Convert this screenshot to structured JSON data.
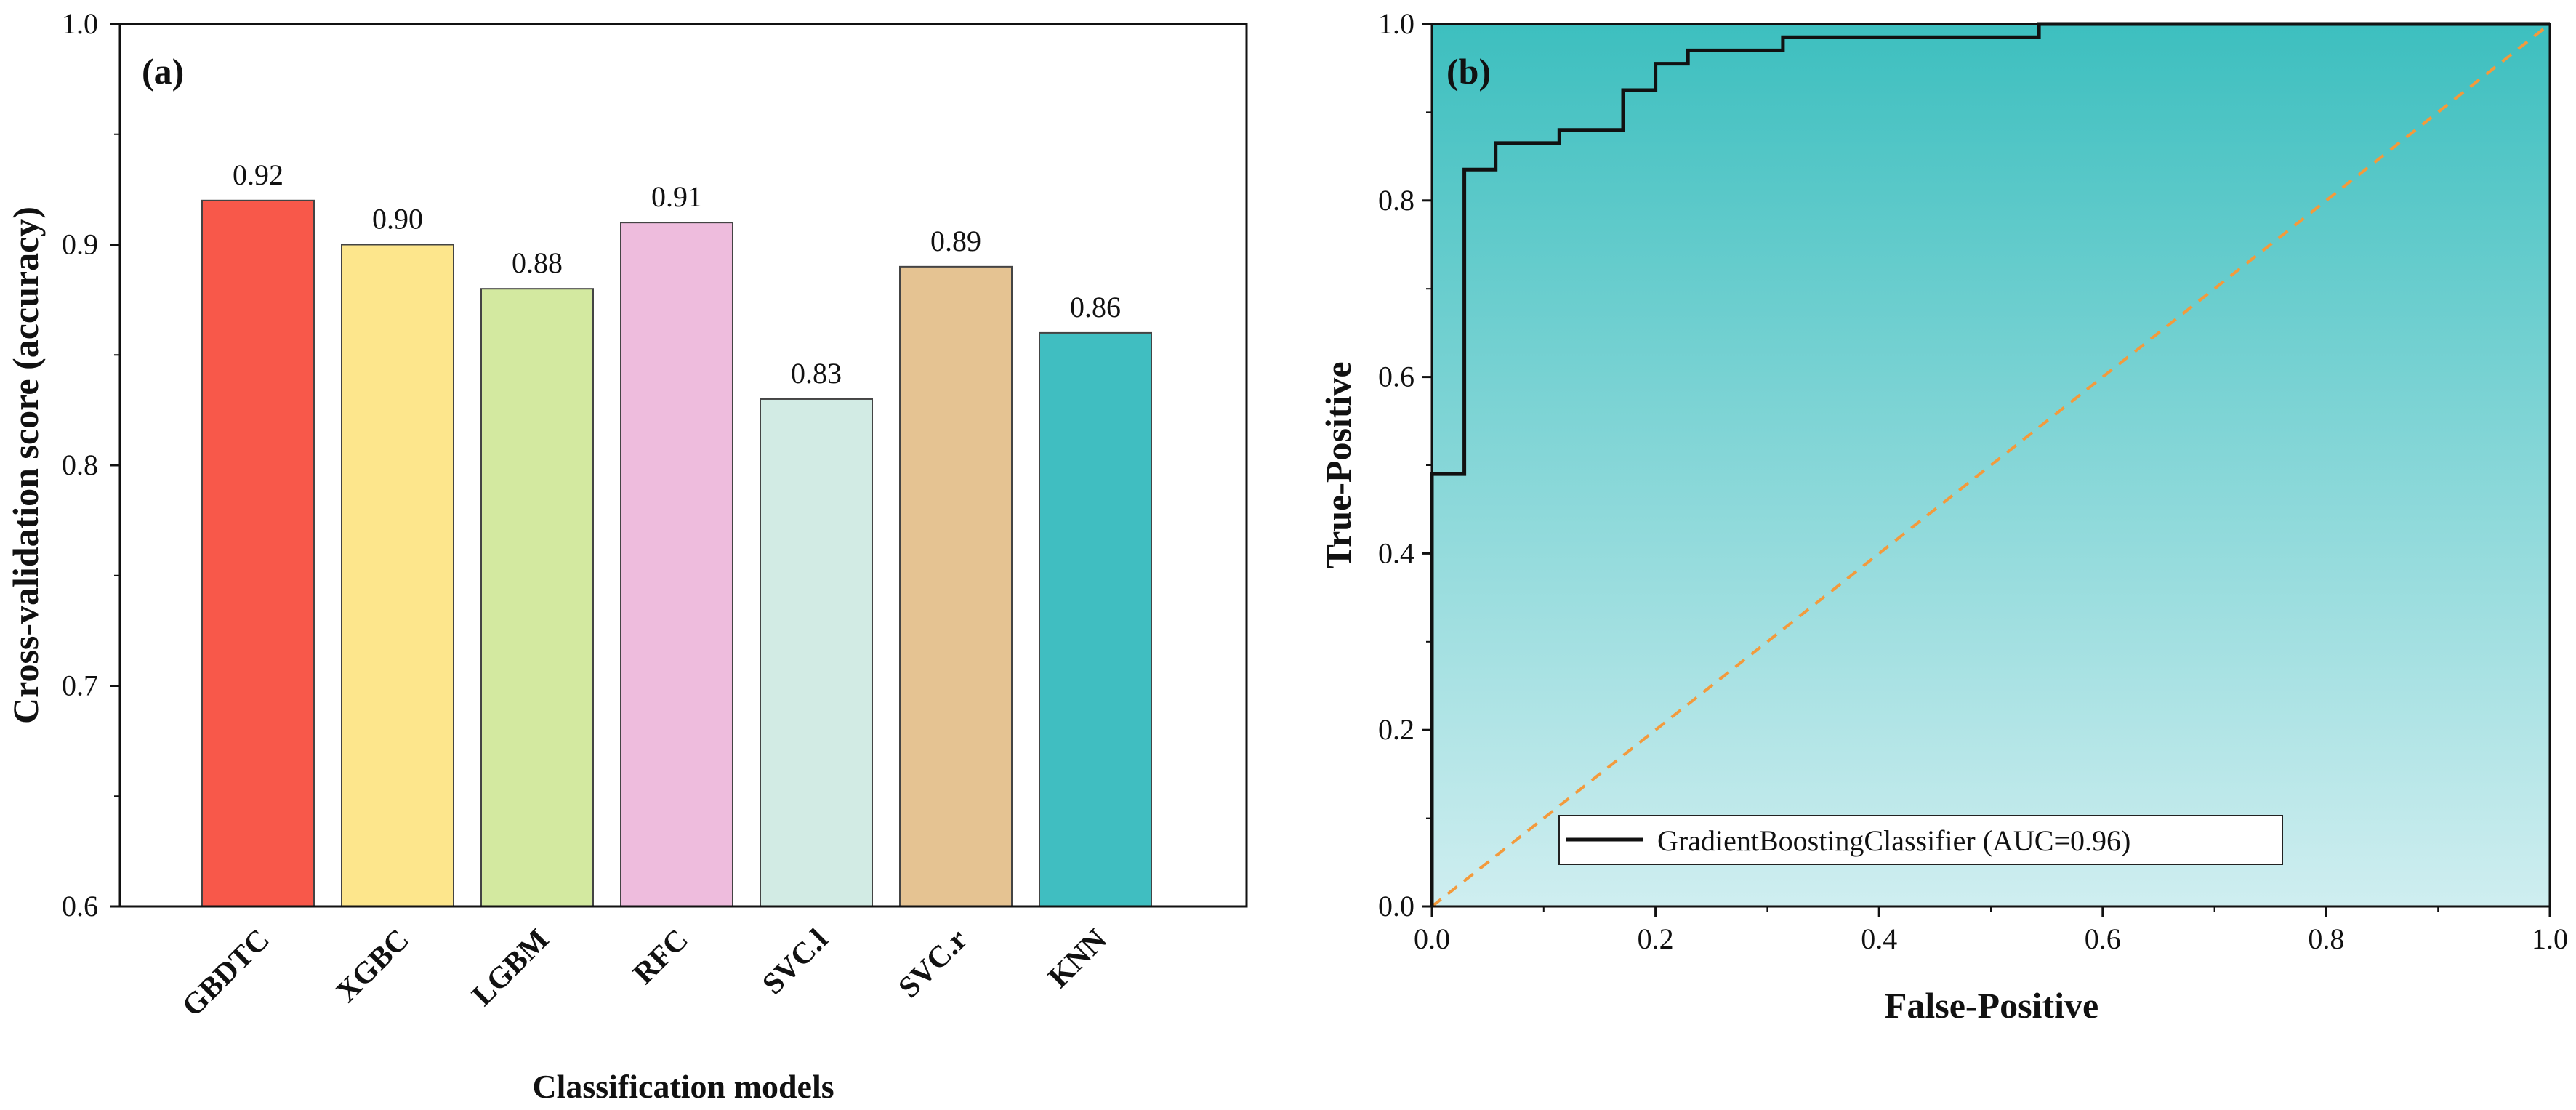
{
  "chart_data": [
    {
      "type": "bar",
      "panel_label": "(a)",
      "categories": [
        "GBDTC",
        "XGBC",
        "LGBM",
        "RFC",
        "SVC.l",
        "SVC.r",
        "KNN"
      ],
      "values": [
        0.92,
        0.9,
        0.88,
        0.91,
        0.83,
        0.89,
        0.86
      ],
      "value_labels": [
        "0.92",
        "0.90",
        "0.88",
        "0.91",
        "0.83",
        "0.89",
        "0.86"
      ],
      "colors": [
        "#f8584a",
        "#fde68c",
        "#d3e9a0",
        "#eebcdd",
        "#d2ebe4",
        "#e5c392",
        "#40bec1"
      ],
      "xlabel": "Classification models",
      "ylabel": "Cross-validation score  (accuracy)",
      "ylim": [
        0.6,
        1.0
      ],
      "yticks": [
        0.6,
        0.7,
        0.8,
        0.9,
        1.0
      ],
      "ytick_labels": [
        "0.6",
        "0.7",
        "0.8",
        "0.9",
        "1.0"
      ],
      "grid": false
    },
    {
      "type": "line",
      "panel_label": "(b)",
      "xlabel": "False-Positive",
      "ylabel": "True-Positive",
      "xlim": [
        0.0,
        1.0
      ],
      "ylim": [
        0.0,
        1.0
      ],
      "xticks": [
        0.0,
        0.2,
        0.4,
        0.6,
        0.8,
        1.0
      ],
      "xtick_labels": [
        "0.0",
        "0.2",
        "0.4",
        "0.6",
        "0.8",
        "1.0"
      ],
      "yticks": [
        0.0,
        0.2,
        0.4,
        0.6,
        0.8,
        1.0
      ],
      "ytick_labels": [
        "0.0",
        "0.2",
        "0.4",
        "0.6",
        "0.8",
        "1.0"
      ],
      "background_gradient": {
        "top": "#3dbfbf",
        "bottom": "#cfeef0"
      },
      "series": [
        {
          "name": "GradientBoostingClassifier (AUC=0.96)",
          "color": "#111111",
          "x": [
            0.0,
            0.0,
            0.029,
            0.029,
            0.057,
            0.057,
            0.114,
            0.114,
            0.171,
            0.171,
            0.2,
            0.2,
            0.229,
            0.229,
            0.314,
            0.314,
            0.543,
            0.543,
            1.0
          ],
          "y": [
            0.0,
            0.49,
            0.49,
            0.835,
            0.835,
            0.865,
            0.865,
            0.88,
            0.88,
            0.925,
            0.925,
            0.955,
            0.955,
            0.97,
            0.97,
            0.985,
            0.985,
            1.0,
            1.0
          ]
        },
        {
          "name": "chance",
          "color": "#f39a3c",
          "dashed": true,
          "x": [
            0.0,
            1.0
          ],
          "y": [
            0.0,
            1.0
          ]
        }
      ],
      "legend": {
        "placement": "bottom-center",
        "entries": [
          "GradientBoostingClassifier (AUC=0.96)"
        ]
      },
      "grid": false
    }
  ]
}
